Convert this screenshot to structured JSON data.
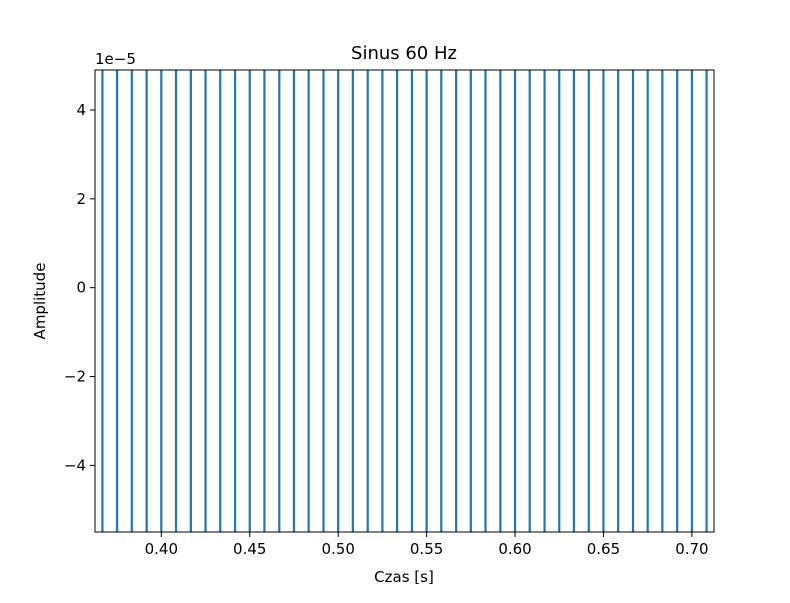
{
  "chart_data": {
    "type": "line",
    "title": "Sinus 60 Hz",
    "xlabel": "Czas [s]",
    "ylabel": "Amplitude",
    "y_offset_label": "1e−5",
    "xlim": [
      0.3625,
      0.7125
    ],
    "ylim": [
      -5.5e-05,
      4.9e-05
    ],
    "x_ticks": [
      0.4,
      0.45,
      0.5,
      0.55,
      0.6,
      0.65,
      0.7
    ],
    "x_tick_labels": [
      "0.40",
      "0.45",
      "0.50",
      "0.55",
      "0.60",
      "0.65",
      "0.70"
    ],
    "y_ticks": [
      -4,
      -2,
      0,
      2,
      4
    ],
    "y_tick_labels": [
      "−4",
      "−2",
      "0",
      "2",
      "4"
    ],
    "y_tick_scale": 1e-05,
    "grid": false,
    "series": [
      {
        "color": "#1f77b4",
        "x_spike_positions": [
          0.3667,
          0.375,
          0.3833,
          0.3917,
          0.4,
          0.4083,
          0.4167,
          0.425,
          0.4333,
          0.4417,
          0.45,
          0.4583,
          0.4667,
          0.475,
          0.4833,
          0.4917,
          0.5,
          0.5083,
          0.5167,
          0.525,
          0.5333,
          0.5417,
          0.55,
          0.5583,
          0.5667,
          0.575,
          0.5833,
          0.5917,
          0.6,
          0.6083,
          0.6167,
          0.625,
          0.6333,
          0.6417,
          0.65,
          0.6583,
          0.6667,
          0.675,
          0.6833,
          0.6917,
          0.7,
          0.7083
        ],
        "note_values": "vertical excursions extending beyond the visible y-range at every half-period (1/120 s)"
      }
    ]
  }
}
